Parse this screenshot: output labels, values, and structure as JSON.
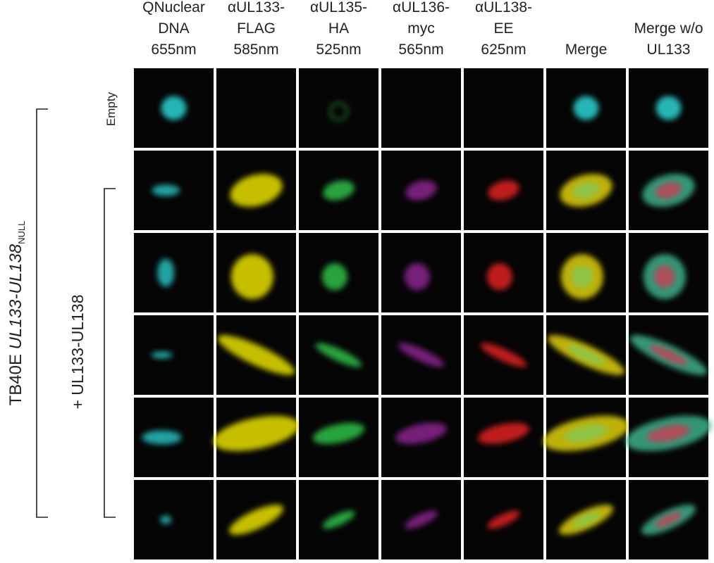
{
  "columns": [
    [
      "QNuclear",
      "DNA",
      "655nm"
    ],
    [
      "αUL133-",
      "FLAG",
      "585nm"
    ],
    [
      "αUL135-",
      "HA",
      "525nm"
    ],
    [
      "αUL136-",
      "myc",
      "565nm"
    ],
    [
      "αUL138-",
      "EE",
      "625nm"
    ],
    [
      "Merge"
    ],
    [
      "Merge w/o",
      "UL133"
    ]
  ],
  "row_label": "Empty",
  "outer_label": {
    "prefix": "TB40E",
    "italic": "UL133-UL138",
    "subscript": "NULL"
  },
  "inner_label": "+ UL133-UL138"
}
